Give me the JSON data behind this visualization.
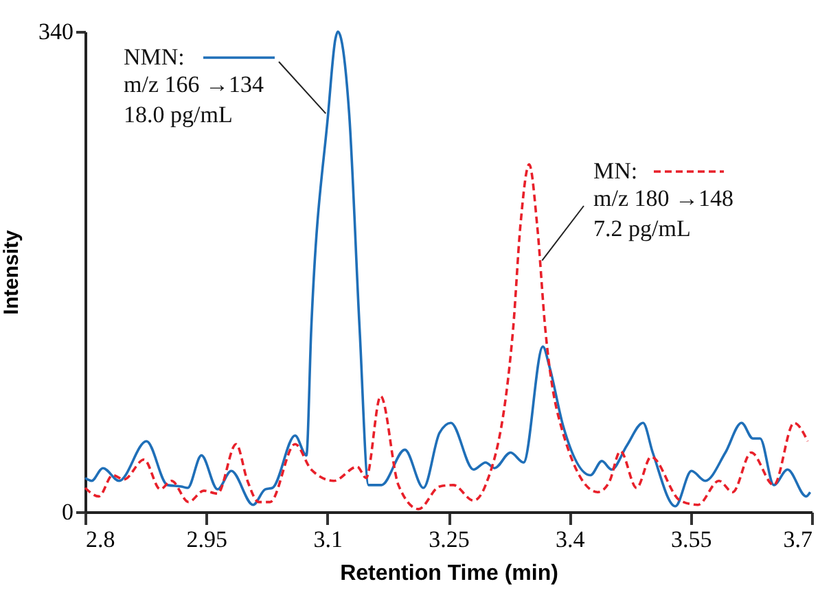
{
  "chart_data": {
    "type": "line",
    "xlabel": "Retention Time (min)",
    "ylabel": "Intensity",
    "xlim": [
      2.8,
      3.7
    ],
    "xticks": [
      2.8,
      2.95,
      3.1,
      3.25,
      3.4,
      3.55,
      3.7
    ],
    "ylim": [
      0,
      340
    ],
    "yticks": [
      0,
      340
    ],
    "grid": false,
    "legend": "top left",
    "series": [
      {
        "name": "NMN:",
        "color": "#1f6fb8",
        "line_style": "solid",
        "x": [
          2.8,
          2.808,
          2.822,
          2.842,
          2.876,
          2.902,
          2.919,
          2.927,
          2.944,
          2.964,
          2.981,
          3.008,
          3.023,
          3.032,
          3.06,
          3.074,
          3.08,
          3.101,
          3.11,
          3.113,
          3.117,
          3.127,
          3.14,
          3.151,
          3.167,
          3.196,
          3.219,
          3.239,
          3.253,
          3.281,
          3.296,
          3.307,
          3.327,
          3.343,
          3.367,
          3.375,
          3.392,
          3.426,
          3.44,
          3.452,
          3.471,
          3.491,
          3.503,
          3.531,
          3.551,
          3.568,
          3.593,
          3.613,
          3.627,
          3.636,
          3.653,
          3.67,
          3.693,
          3.698
        ],
        "values": [
          24,
          22,
          31,
          22,
          50,
          19,
          18,
          17,
          40,
          16,
          29,
          5,
          16,
          17,
          54,
          40,
          129,
          282,
          335,
          340,
          335,
          282,
          129,
          19,
          19,
          44,
          17,
          56,
          63,
          30,
          35,
          31,
          42,
          35,
          117,
          103,
          61,
          26,
          36,
          30,
          47,
          63,
          42,
          4,
          29,
          22,
          42,
          63,
          52,
          52,
          19,
          30,
          11,
          14
        ]
      },
      {
        "name": "MN:",
        "color": "#e8202a",
        "line_style": "dashed",
        "x": [
          2.8,
          2.817,
          2.834,
          2.848,
          2.873,
          2.893,
          2.907,
          2.928,
          2.947,
          2.964,
          2.987,
          3.001,
          3.015,
          3.029,
          3.06,
          3.08,
          3.108,
          3.137,
          3.148,
          3.166,
          3.188,
          3.213,
          3.239,
          3.256,
          3.281,
          3.296,
          3.33,
          3.339,
          3.35,
          3.36,
          3.37,
          3.386,
          3.435,
          3.449,
          3.463,
          3.483,
          3.501,
          3.537,
          3.559,
          3.585,
          3.602,
          3.625,
          3.653,
          3.678,
          3.695
        ],
        "values": [
          17,
          11,
          26,
          23,
          37,
          16,
          22,
          7,
          15,
          13,
          48,
          22,
          7,
          7,
          48,
          30,
          22,
          32,
          24,
          82,
          19,
          2,
          18,
          19,
          8,
          19,
          129,
          202,
          246,
          202,
          129,
          68,
          14,
          21,
          43,
          17,
          39,
          8,
          5,
          22,
          14,
          42,
          19,
          63,
          50
        ]
      }
    ],
    "annotations": [
      {
        "text": "m/z 166 →134\n18.0 pg/mL",
        "x": 3.098,
        "y": 282
      },
      {
        "text": "m/z 180 →148\n7.2 pg/mL",
        "x": 3.366,
        "y": 178
      }
    ]
  }
}
